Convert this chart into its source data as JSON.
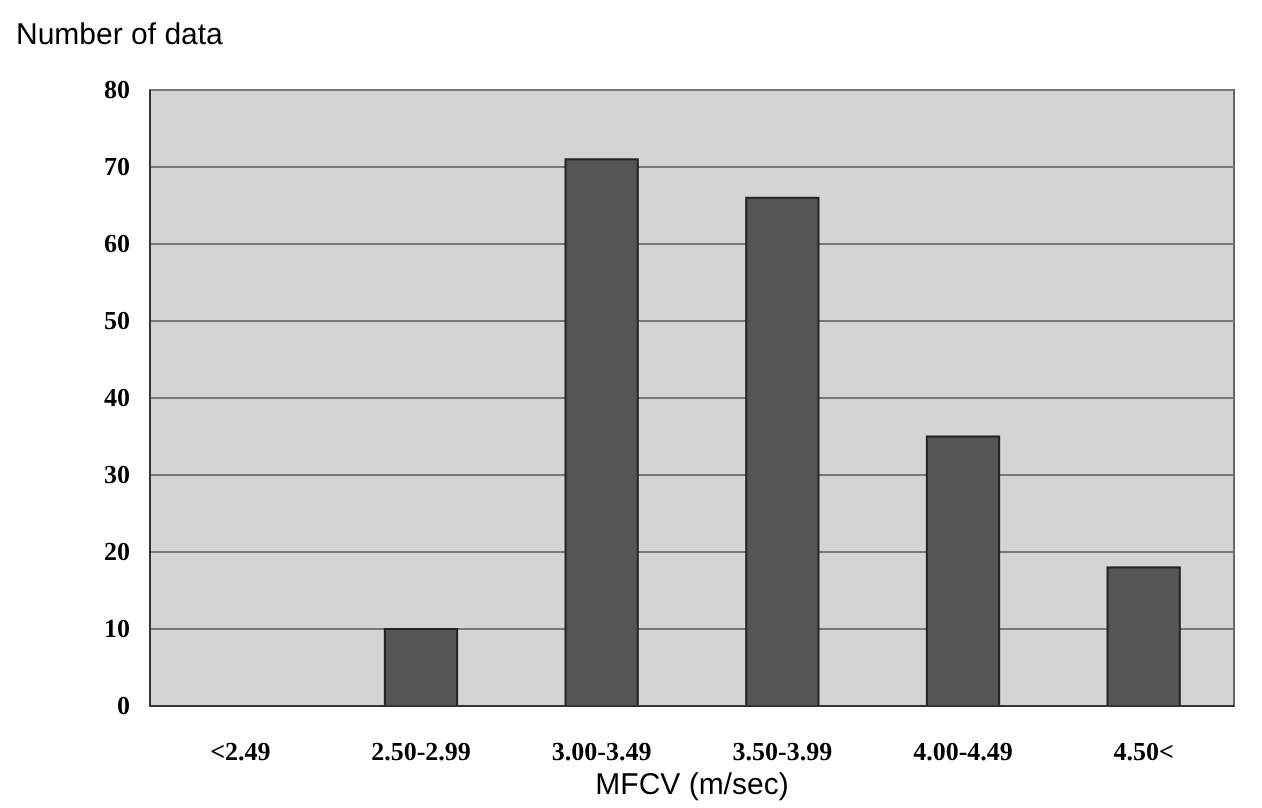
{
  "chart_data": {
    "type": "bar",
    "ylabel": "Number of data",
    "xlabel": "MFCV (m/sec)",
    "categories": [
      "<2.49",
      "2.50-2.99",
      "3.00-3.49",
      "3.50-3.99",
      "4.00-4.49",
      "4.50<"
    ],
    "values": [
      0,
      10,
      71,
      66,
      35,
      18
    ],
    "color": "#555555",
    "ylim": [
      0,
      80
    ],
    "yticks": [
      0,
      10,
      20,
      30,
      40,
      50,
      60,
      70,
      80
    ],
    "grid": "y"
  }
}
